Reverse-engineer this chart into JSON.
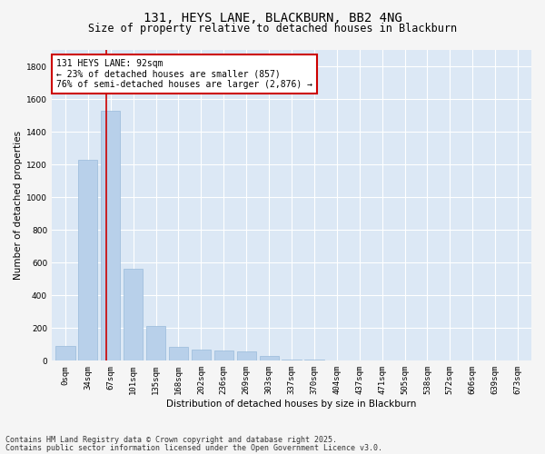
{
  "title": "131, HEYS LANE, BLACKBURN, BB2 4NG",
  "subtitle": "Size of property relative to detached houses in Blackburn",
  "xlabel": "Distribution of detached houses by size in Blackburn",
  "ylabel": "Number of detached properties",
  "categories": [
    "0sqm",
    "34sqm",
    "67sqm",
    "101sqm",
    "135sqm",
    "168sqm",
    "202sqm",
    "236sqm",
    "269sqm",
    "303sqm",
    "337sqm",
    "370sqm",
    "404sqm",
    "437sqm",
    "471sqm",
    "505sqm",
    "538sqm",
    "572sqm",
    "606sqm",
    "639sqm",
    "673sqm"
  ],
  "values": [
    90,
    1230,
    1530,
    560,
    215,
    85,
    70,
    65,
    55,
    30,
    10,
    5,
    3,
    2,
    1,
    0,
    0,
    0,
    0,
    0,
    0
  ],
  "bar_color": "#b8d0ea",
  "bar_edge_color": "#99bada",
  "vline_color": "#cc0000",
  "vline_pos": 1.82,
  "annotation_text": "131 HEYS LANE: 92sqm\n← 23% of detached houses are smaller (857)\n76% of semi-detached houses are larger (2,876) →",
  "annotation_box_facecolor": "#ffffff",
  "annotation_box_edgecolor": "#cc0000",
  "ylim": [
    0,
    1900
  ],
  "yticks": [
    0,
    200,
    400,
    600,
    800,
    1000,
    1200,
    1400,
    1600,
    1800
  ],
  "footer1": "Contains HM Land Registry data © Crown copyright and database right 2025.",
  "footer2": "Contains public sector information licensed under the Open Government Licence v3.0.",
  "fig_facecolor": "#f5f5f5",
  "ax_facecolor": "#dce8f5",
  "grid_color": "#ffffff",
  "title_fontsize": 10,
  "subtitle_fontsize": 8.5,
  "ylabel_fontsize": 7.5,
  "xlabel_fontsize": 7.5,
  "tick_fontsize": 6.5,
  "annotation_fontsize": 7.0,
  "footer_fontsize": 6.0
}
